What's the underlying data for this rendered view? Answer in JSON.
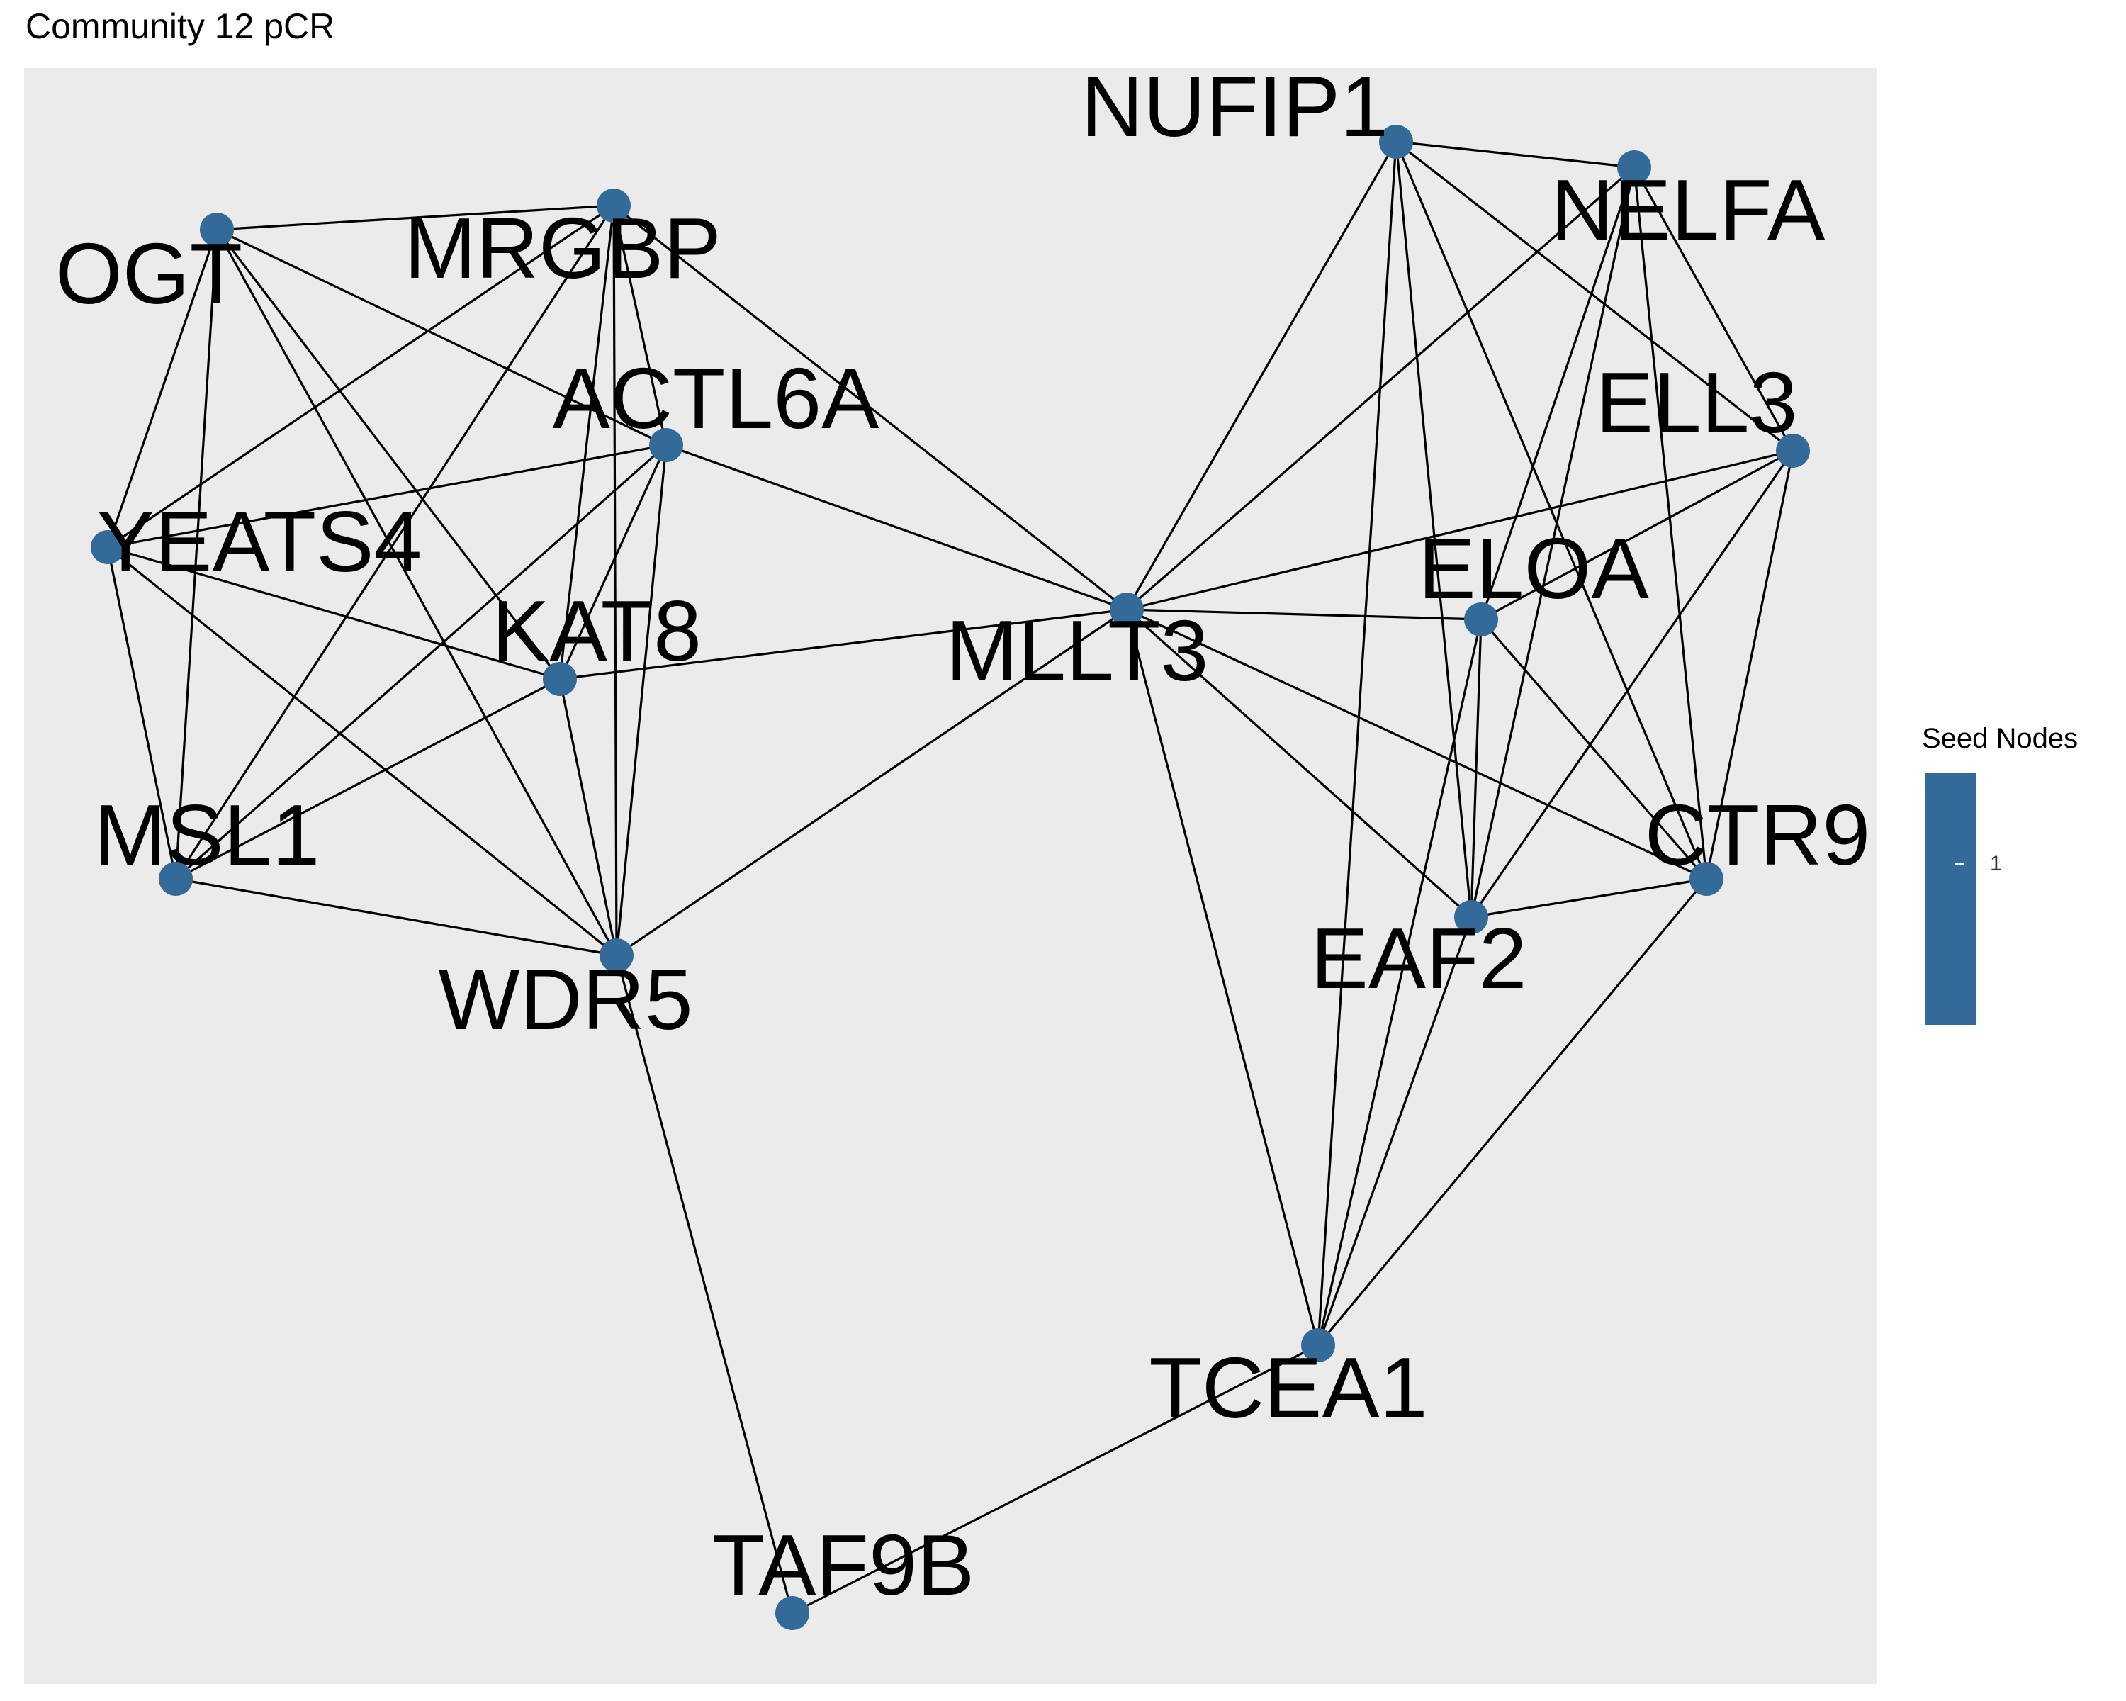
{
  "title": "Community 12 pCR",
  "colors": {
    "panel": "#ebebeb",
    "node": "#336a98",
    "edge": "#000000"
  },
  "legend": {
    "title": "Seed Nodes",
    "value": "1"
  },
  "nodes": [
    {
      "id": "NUFIP1",
      "label": "NUFIP1"
    },
    {
      "id": "NELFA",
      "label": "NELFA"
    },
    {
      "id": "OGT",
      "label": "OGT"
    },
    {
      "id": "MRGBP",
      "label": "MRGBP"
    },
    {
      "id": "ACTL6A",
      "label": "ACTL6A"
    },
    {
      "id": "ELL3",
      "label": "ELL3"
    },
    {
      "id": "YEATS4",
      "label": "YEATS4"
    },
    {
      "id": "ELOA",
      "label": "ELOA"
    },
    {
      "id": "MLLT3",
      "label": "MLLT3"
    },
    {
      "id": "KAT8",
      "label": "KAT8"
    },
    {
      "id": "MSL1",
      "label": "MSL1"
    },
    {
      "id": "CTR9",
      "label": "CTR9"
    },
    {
      "id": "EAF2",
      "label": "EAF2"
    },
    {
      "id": "WDR5",
      "label": "WDR5"
    },
    {
      "id": "TCEA1",
      "label": "TCEA1"
    },
    {
      "id": "TAF9B",
      "label": "TAF9B"
    }
  ],
  "edges": [
    [
      "OGT",
      "MRGBP"
    ],
    [
      "OGT",
      "YEATS4"
    ],
    [
      "OGT",
      "MSL1"
    ],
    [
      "OGT",
      "ACTL6A"
    ],
    [
      "OGT",
      "KAT8"
    ],
    [
      "OGT",
      "WDR5"
    ],
    [
      "MRGBP",
      "YEATS4"
    ],
    [
      "MRGBP",
      "MSL1"
    ],
    [
      "MRGBP",
      "KAT8"
    ],
    [
      "MRGBP",
      "WDR5"
    ],
    [
      "MRGBP",
      "ACTL6A"
    ],
    [
      "MRGBP",
      "MLLT3"
    ],
    [
      "ACTL6A",
      "YEATS4"
    ],
    [
      "ACTL6A",
      "MSL1"
    ],
    [
      "ACTL6A",
      "KAT8"
    ],
    [
      "ACTL6A",
      "WDR5"
    ],
    [
      "ACTL6A",
      "MLLT3"
    ],
    [
      "YEATS4",
      "KAT8"
    ],
    [
      "YEATS4",
      "MSL1"
    ],
    [
      "YEATS4",
      "WDR5"
    ],
    [
      "KAT8",
      "MSL1"
    ],
    [
      "KAT8",
      "WDR5"
    ],
    [
      "KAT8",
      "MLLT3"
    ],
    [
      "MSL1",
      "WDR5"
    ],
    [
      "WDR5",
      "MLLT3"
    ],
    [
      "WDR5",
      "TAF9B"
    ],
    [
      "MLLT3",
      "NUFIP1"
    ],
    [
      "MLLT3",
      "NELFA"
    ],
    [
      "MLLT3",
      "ELL3"
    ],
    [
      "MLLT3",
      "ELOA"
    ],
    [
      "MLLT3",
      "EAF2"
    ],
    [
      "MLLT3",
      "CTR9"
    ],
    [
      "MLLT3",
      "TCEA1"
    ],
    [
      "NUFIP1",
      "NELFA"
    ],
    [
      "NUFIP1",
      "ELL3"
    ],
    [
      "NUFIP1",
      "EAF2"
    ],
    [
      "NUFIP1",
      "CTR9"
    ],
    [
      "NUFIP1",
      "TCEA1"
    ],
    [
      "NELFA",
      "ELL3"
    ],
    [
      "NELFA",
      "CTR9"
    ],
    [
      "NELFA",
      "EAF2"
    ],
    [
      "NELFA",
      "ELOA"
    ],
    [
      "ELL3",
      "ELOA"
    ],
    [
      "ELL3",
      "CTR9"
    ],
    [
      "ELL3",
      "EAF2"
    ],
    [
      "ELOA",
      "CTR9"
    ],
    [
      "ELOA",
      "TCEA1"
    ],
    [
      "ELOA",
      "EAF2"
    ],
    [
      "EAF2",
      "CTR9"
    ],
    [
      "EAF2",
      "TCEA1"
    ],
    [
      "CTR9",
      "TCEA1"
    ],
    [
      "TCEA1",
      "TAF9B"
    ]
  ]
}
